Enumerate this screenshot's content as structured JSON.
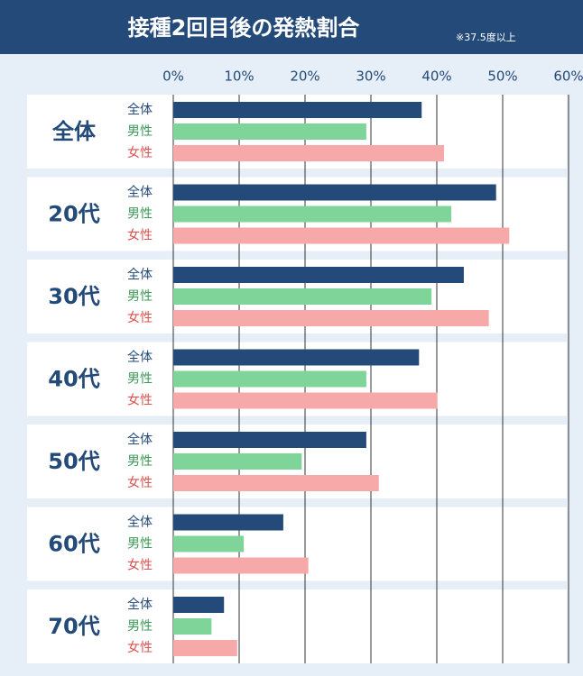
{
  "chart_data": {
    "type": "bar",
    "orientation": "horizontal",
    "title": "接種2回目後の発熱割合",
    "note": "※37.5度以上",
    "categories": [
      "全体",
      "20代",
      "30代",
      "40代",
      "50代",
      "60代",
      "70代"
    ],
    "series": [
      {
        "name": "全体",
        "color": "#234a78",
        "values": [
          37.7,
          49.0,
          44.1,
          37.3,
          29.3,
          16.7,
          7.7
        ]
      },
      {
        "name": "男性",
        "color": "#7fd49a",
        "values": [
          29.3,
          42.2,
          39.2,
          29.3,
          19.5,
          10.7,
          5.8
        ]
      },
      {
        "name": "女性",
        "color": "#f7a8a8",
        "values": [
          41.1,
          51.0,
          47.9,
          40.1,
          31.2,
          20.5,
          9.7
        ]
      }
    ],
    "xlim": [
      0,
      60
    ],
    "xticks": [
      {
        "value": 0,
        "label": "0%"
      },
      {
        "value": 10,
        "label": "10%"
      },
      {
        "value": 20,
        "label": "20%"
      },
      {
        "value": 30,
        "label": "30%"
      },
      {
        "value": 40,
        "label": "40%"
      },
      {
        "value": 50,
        "label": "50%"
      },
      {
        "value": 60,
        "label": "60%"
      }
    ],
    "grid": true
  }
}
